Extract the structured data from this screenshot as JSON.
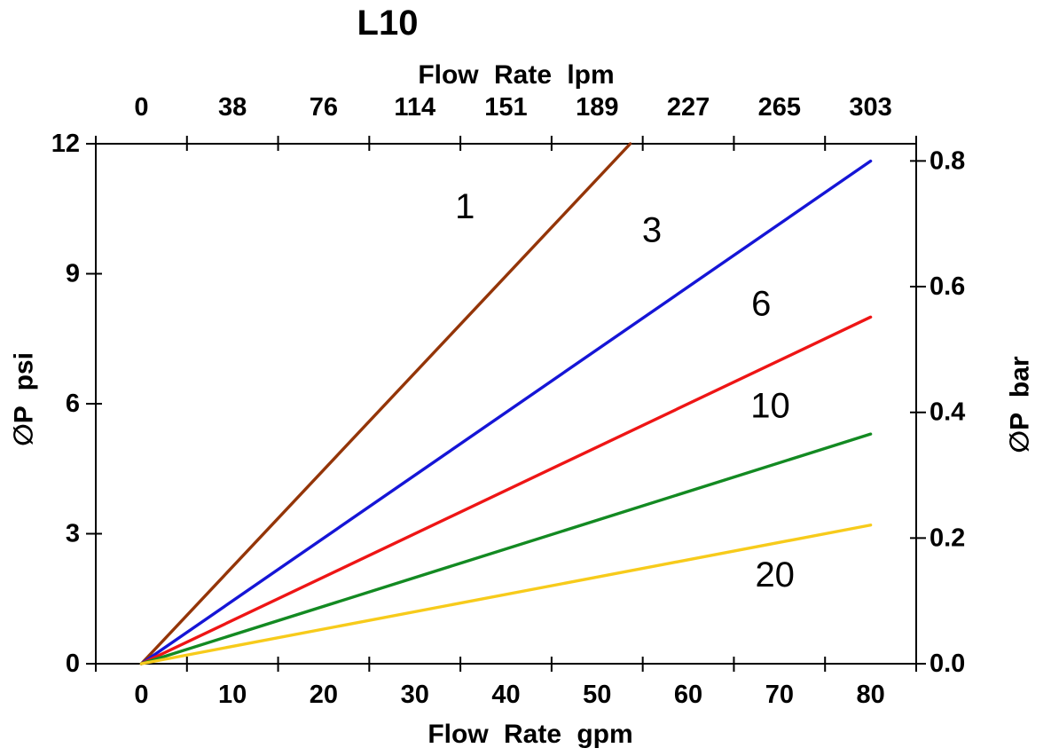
{
  "chart_data": {
    "type": "line",
    "title": "L10",
    "axes": {
      "top": {
        "label": "Flow Rate lpm",
        "tick_labels": [
          "0",
          "38",
          "76",
          "114",
          "151",
          "189",
          "227",
          "265",
          "303"
        ]
      },
      "bottom": {
        "label": "Flow Rate gpm",
        "tick_labels": [
          "0",
          "10",
          "20",
          "30",
          "40",
          "50",
          "60",
          "70",
          "80"
        ]
      },
      "left": {
        "label": "∅P psi",
        "tick_labels": [
          "0",
          "3",
          "6",
          "9",
          "12"
        ],
        "tick_values": [
          0,
          3,
          6,
          9,
          12
        ],
        "range": [
          0,
          12
        ]
      },
      "right": {
        "label": "∅P bar",
        "tick_labels": [
          "0.0",
          "0.2",
          "0.4",
          "0.6",
          "0.8"
        ],
        "tick_values": [
          0,
          0.2,
          0.4,
          0.6,
          0.8
        ],
        "range": [
          0,
          0.8274
        ]
      }
    },
    "x_range": [
      0,
      80
    ],
    "grid": false,
    "frame": true,
    "series": [
      {
        "label": "1",
        "color": "#943508",
        "points": [
          [
            0,
            0
          ],
          [
            80,
            17.9
          ]
        ],
        "label_at": [
          35.5,
          10.55
        ]
      },
      {
        "label": "3",
        "color": "#1515D6",
        "points": [
          [
            0,
            0
          ],
          [
            80,
            11.6
          ]
        ],
        "label_at": [
          56.0,
          10.0
        ]
      },
      {
        "label": "6",
        "color": "#EE1515",
        "points": [
          [
            0,
            0
          ],
          [
            80,
            8.0
          ]
        ],
        "label_at": [
          68.0,
          8.3
        ]
      },
      {
        "label": "10",
        "color": "#138A22",
        "points": [
          [
            0,
            0
          ],
          [
            80,
            5.3
          ]
        ],
        "label_at": [
          69.0,
          5.95
        ]
      },
      {
        "label": "20",
        "color": "#F7CB1B",
        "points": [
          [
            0,
            0
          ],
          [
            80,
            3.2
          ]
        ],
        "label_at": [
          69.5,
          2.05
        ]
      }
    ]
  }
}
